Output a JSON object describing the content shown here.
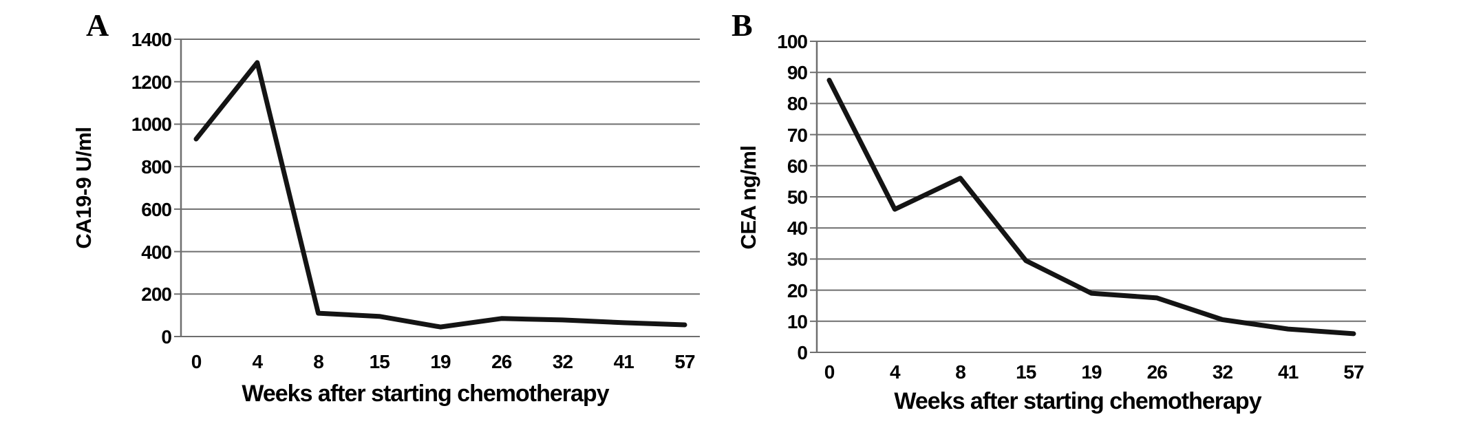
{
  "figure": {
    "background": "#ffffff",
    "series_color": "#141414",
    "grid_color": "#6e6e6e",
    "axis_color": "#6e6e6e",
    "text_color": "#000000"
  },
  "chart_data": [
    {
      "type": "line",
      "panel_label": "A",
      "title": "",
      "ylabel": "CA19-9 U/ml",
      "xlabel": "Weeks after starting chemotherapy",
      "categories": [
        "0",
        "4",
        "8",
        "15",
        "19",
        "26",
        "32",
        "41",
        "57"
      ],
      "values": [
        930,
        1290,
        110,
        95,
        45,
        85,
        78,
        65,
        55
      ],
      "yticks": [
        0,
        200,
        400,
        600,
        800,
        1000,
        1200,
        1400
      ],
      "ylim": [
        0,
        1400
      ],
      "grid": true,
      "legend": "none"
    },
    {
      "type": "line",
      "panel_label": "B",
      "title": "",
      "ylabel": "CEA ng/ml",
      "xlabel": "Weeks after starting chemotherapy",
      "categories": [
        "0",
        "4",
        "8",
        "15",
        "19",
        "26",
        "32",
        "41",
        "57"
      ],
      "values": [
        87.5,
        46,
        56,
        29.5,
        19,
        17.5,
        10.5,
        7.5,
        6
      ],
      "yticks": [
        0,
        10,
        20,
        30,
        40,
        50,
        60,
        70,
        80,
        90,
        100
      ],
      "ylim": [
        0,
        100
      ],
      "grid": true,
      "legend": "none"
    }
  ]
}
